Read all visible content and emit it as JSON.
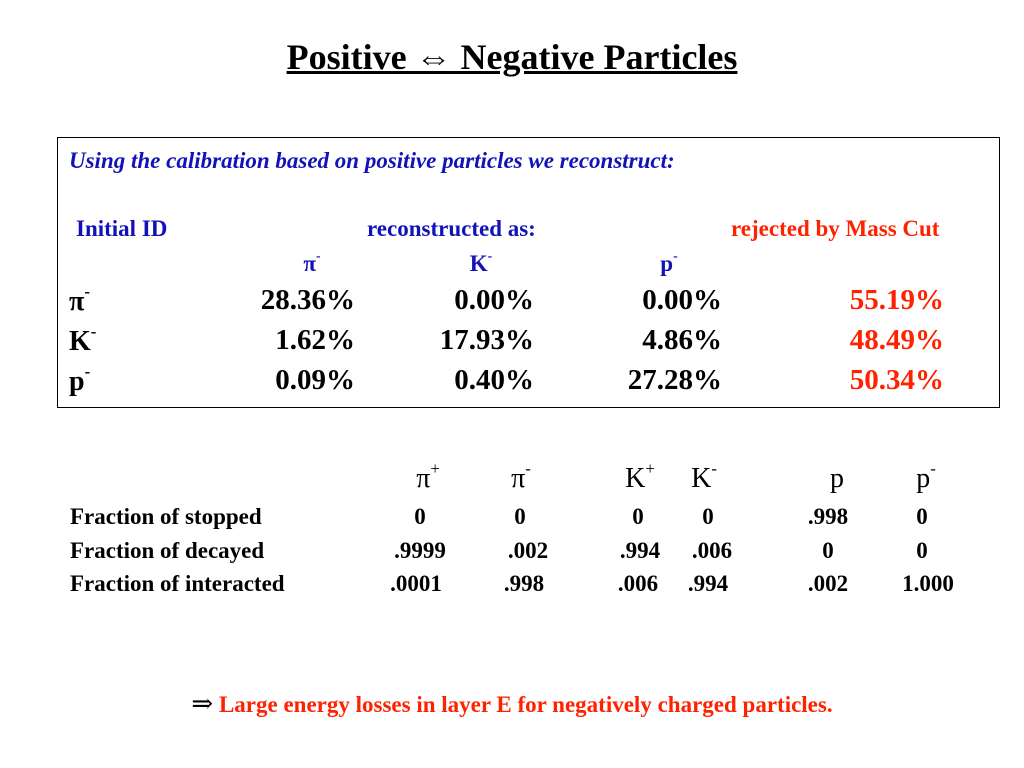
{
  "title": "Positive ⇔ Negative Particles",
  "box": {
    "intro": "Using the calibration based on positive particles we reconstruct:",
    "header_initial": "Initial ID",
    "header_reconstructed": "reconstructed as:",
    "header_rejected": "rejected by Mass Cut",
    "sub_columns": [
      {
        "base": "π",
        "sup": "-"
      },
      {
        "base": "K",
        "sup": "-"
      },
      {
        "base": "p",
        "sup": "-"
      }
    ],
    "rows": [
      {
        "base": "π",
        "sup": "-",
        "values": [
          "28.36%",
          "0.00%",
          "0.00%"
        ],
        "rejected": "55.19%"
      },
      {
        "base": "K",
        "sup": "-",
        "values": [
          "1.62%",
          "17.93%",
          "4.86%"
        ],
        "rejected": "48.49%"
      },
      {
        "base": "p",
        "sup": "-",
        "values": [
          "0.09%",
          "0.40%",
          "27.28%"
        ],
        "rejected": "50.34%"
      }
    ]
  },
  "fractions": {
    "columns": [
      {
        "base": "π",
        "sup": "+"
      },
      {
        "base": "π",
        "sup": "-"
      },
      {
        "base": "K",
        "sup": "+"
      },
      {
        "base": "K",
        "sup": "-"
      },
      {
        "base": "p",
        "sup": ""
      },
      {
        "base": "p",
        "sup": "-"
      }
    ],
    "rows": [
      {
        "label": "Fraction of stopped",
        "values": [
          "0",
          "0",
          "0",
          "0",
          ".998",
          "0"
        ]
      },
      {
        "label": "Fraction of decayed",
        "values": [
          ".9999",
          ".002",
          ".994",
          ".006",
          "0",
          "0"
        ]
      },
      {
        "label": "Fraction of interacted",
        "values": [
          ".0001",
          ".998",
          ".006",
          ".994",
          ".002",
          "1.000"
        ]
      }
    ]
  },
  "conclusion": {
    "arrow": "⇒",
    "text": "Large energy losses in layer E for negatively charged particles."
  },
  "colors": {
    "blue": "#1212b8",
    "red": "#ff2200"
  }
}
